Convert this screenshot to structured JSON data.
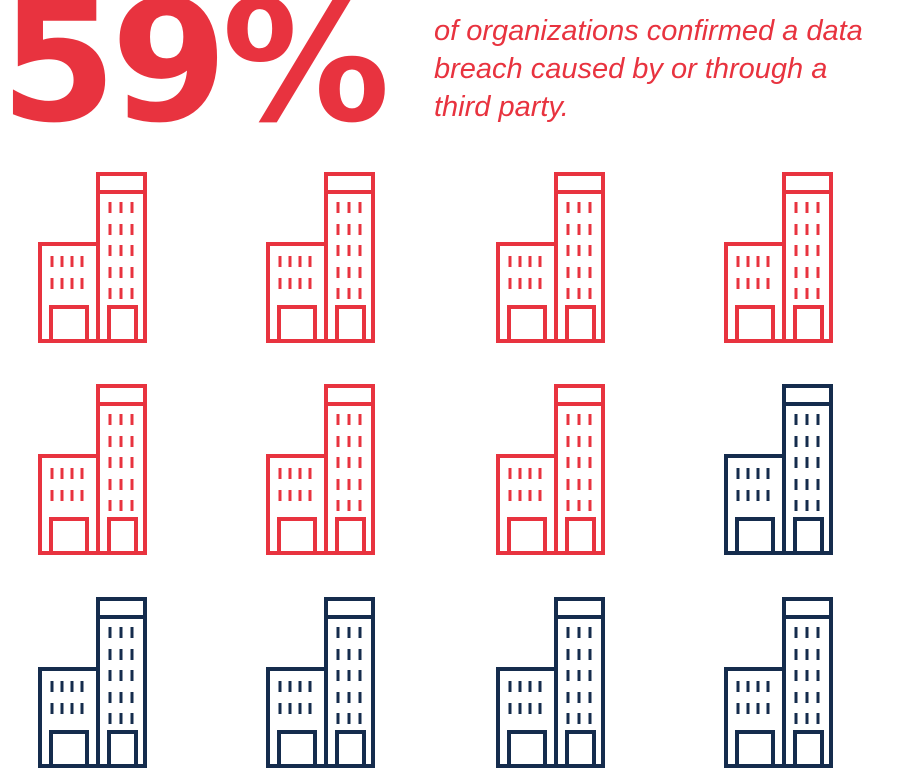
{
  "stat": {
    "value": "59%",
    "caption_lines": [
      "of organizations confirmed a data",
      "breach caused by or through a",
      "third party."
    ]
  },
  "colors": {
    "highlight": "#e8333f",
    "base": "#152c4d",
    "background": "#ffffff"
  },
  "pictogram": {
    "icon": "office-building-icon",
    "total": 12,
    "highlighted": 7
  }
}
